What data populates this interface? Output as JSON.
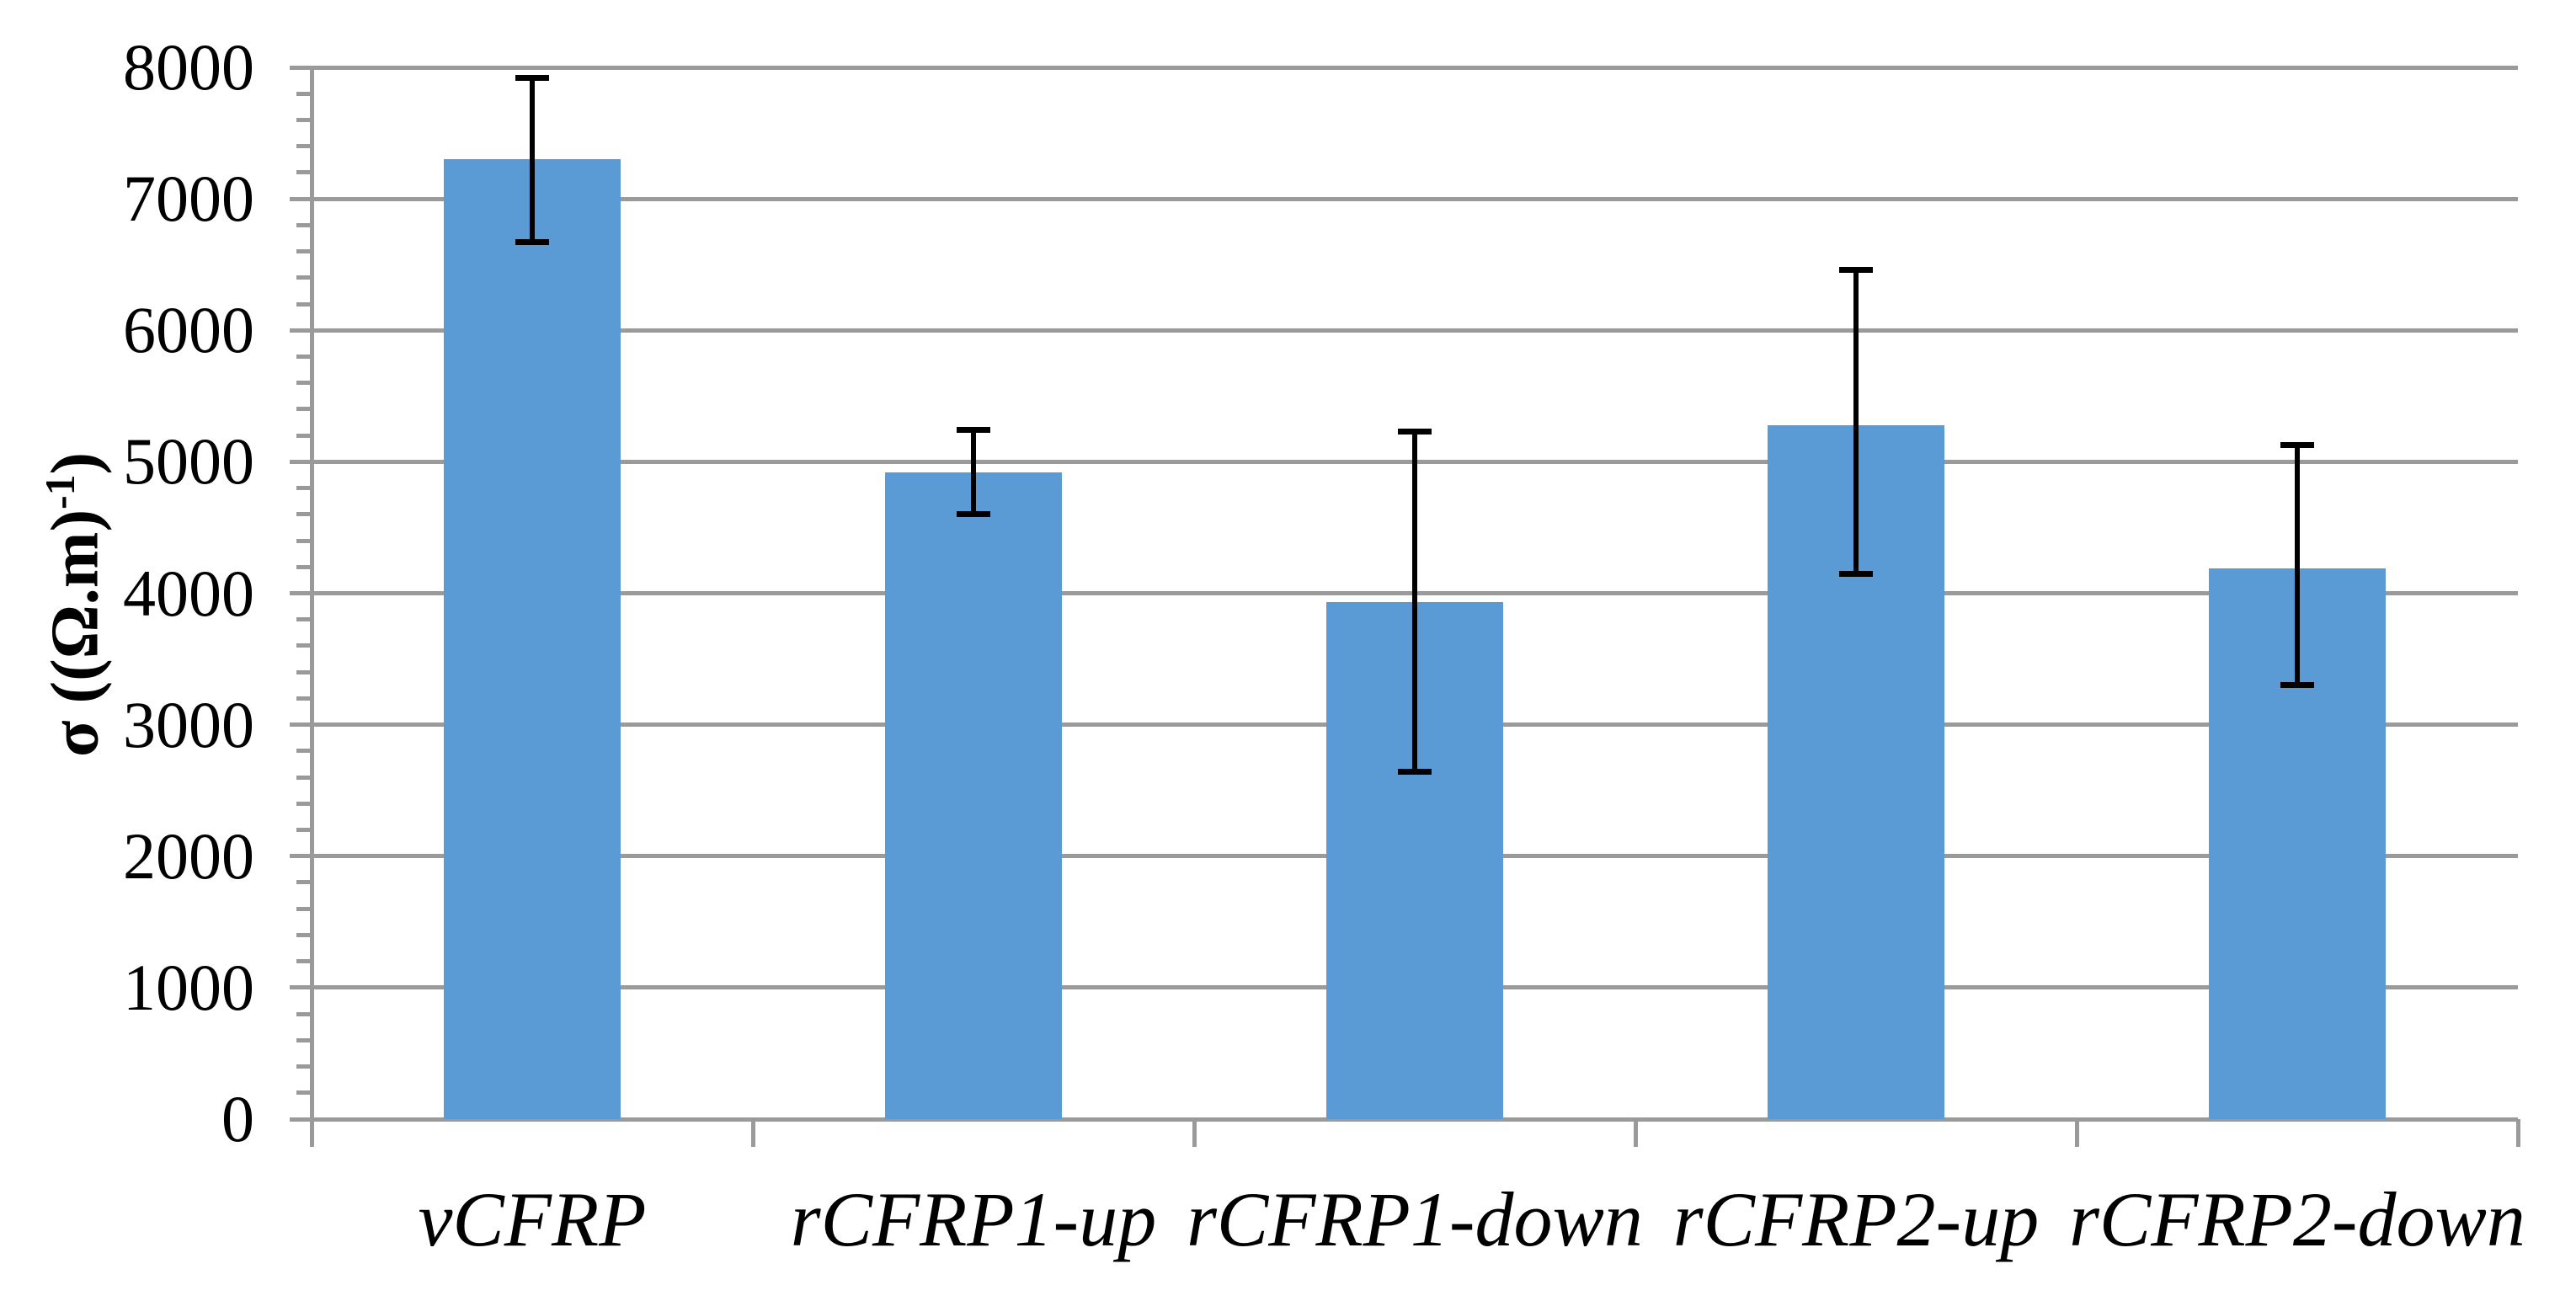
{
  "chart_data": {
    "type": "bar",
    "title": "",
    "xlabel": "",
    "ylabel": "σ ((Ω.m)⁻¹)",
    "ylabel_parts": {
      "pre": "σ ((Ω.m)",
      "sup": "-1",
      "post": ")"
    },
    "categories": [
      "vCFRP",
      "rCFRP1-up",
      "rCFRP1-down",
      "rCFRP2-up",
      "rCFRP2-down"
    ],
    "values": [
      7300,
      4920,
      3930,
      5280,
      4190
    ],
    "error_high": [
      7920,
      5240,
      5230,
      6460,
      5130
    ],
    "error_low": [
      6670,
      4600,
      2640,
      4150,
      3300
    ],
    "ylim": [
      0,
      8000
    ],
    "y_major_step": 1000,
    "y_minor_step": 200,
    "y_tick_labels": [
      "0",
      "1000",
      "2000",
      "3000",
      "4000",
      "5000",
      "6000",
      "7000",
      "8000"
    ],
    "grid": "horizontal-major-on",
    "legend": "none",
    "colors": {
      "bar": "#5B9BD5",
      "grid": "#9A9A9A",
      "axis": "#9A9A9A",
      "error_bar": "#000000",
      "text": "#000000",
      "background": "#FFFFFF"
    }
  }
}
